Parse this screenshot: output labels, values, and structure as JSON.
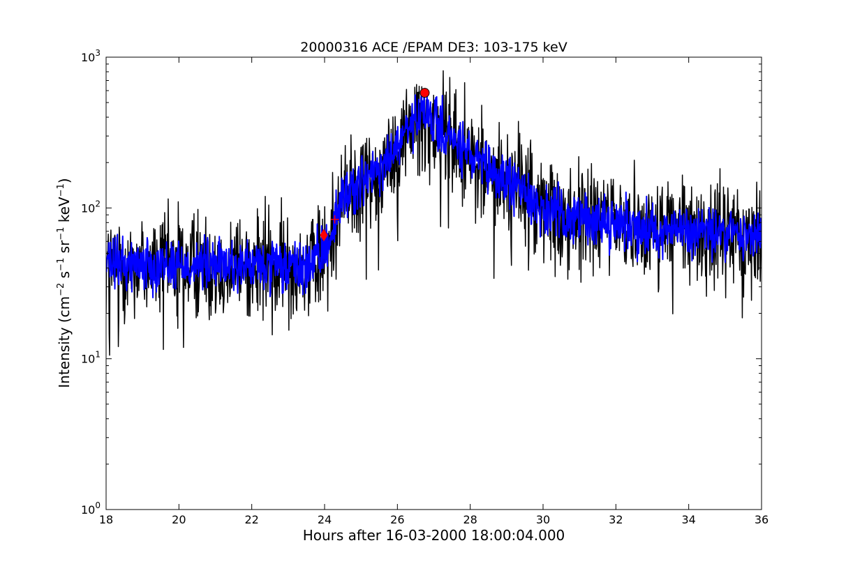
{
  "chart_data": {
    "type": "line",
    "title": "20000316 ACE /EPAM DE3: 103-175 keV",
    "xlabel": "Hours after 16-03-2000 18:00:04.000",
    "ylabel": {
      "prefix": "Intensity (cm",
      "sup1": "−2",
      "mid1": " s",
      "sup2": "−1",
      "mid2": " sr",
      "sup3": "−1",
      "mid3": " keV",
      "sup4": "−1",
      "suffix": ")"
    },
    "xlim": [
      18,
      36
    ],
    "ylim": [
      1,
      1000
    ],
    "yscale": "log",
    "xticks": [
      18,
      20,
      22,
      24,
      26,
      28,
      30,
      32,
      34,
      36
    ],
    "xtick_labels": [
      "18",
      "20",
      "22",
      "24",
      "26",
      "28",
      "30",
      "32",
      "34",
      "36"
    ],
    "yticks": [
      {
        "value": 1,
        "base": "10",
        "exp": "0"
      },
      {
        "value": 10,
        "base": "10",
        "exp": "1"
      },
      {
        "value": 100,
        "base": "10",
        "exp": "2"
      },
      {
        "value": 1000,
        "base": "10",
        "exp": "3"
      }
    ],
    "grid": false,
    "series": [
      {
        "role": "raw",
        "color": "#000000",
        "profile_x": [
          18,
          19,
          20,
          21,
          22,
          23,
          23.5,
          23.9,
          24.2,
          24.5,
          25,
          25.5,
          26,
          26.5,
          26.8,
          27.2,
          27.6,
          28,
          28.5,
          29,
          29.5,
          30,
          31,
          32,
          33,
          34,
          35,
          36
        ],
        "profile_y": [
          42,
          43,
          42,
          42,
          41,
          40,
          40,
          48,
          70,
          120,
          150,
          170,
          260,
          380,
          420,
          330,
          270,
          220,
          170,
          150,
          130,
          95,
          85,
          80,
          72,
          70,
          68,
          65
        ],
        "noise_amplitude": 0.35,
        "spike_low_min": 8.2,
        "n_points": 1500
      },
      {
        "role": "smoothed",
        "color": "#0000ff",
        "profile_x": [
          18,
          19,
          20,
          21,
          22,
          23,
          23.5,
          23.9,
          24.2,
          24.5,
          25,
          25.5,
          26,
          26.5,
          26.8,
          27.2,
          27.6,
          28,
          28.5,
          29,
          29.5,
          30,
          31,
          32,
          33,
          34,
          35,
          36
        ],
        "profile_y": [
          42,
          43,
          42,
          42,
          41,
          40,
          40,
          48,
          70,
          120,
          150,
          170,
          260,
          380,
          420,
          330,
          270,
          220,
          170,
          150,
          130,
          95,
          85,
          80,
          72,
          70,
          68,
          65
        ],
        "noise_amplitude": 0.17,
        "n_points": 1500
      }
    ],
    "markers": [
      {
        "shape": "diamond",
        "x": 23.98,
        "y": 66,
        "color": "#ff0000"
      },
      {
        "shape": "plus",
        "x": 24.28,
        "y": 84,
        "color": "#ff0000"
      },
      {
        "shape": "circle",
        "x": 26.75,
        "y": 580,
        "color": "#ff0000"
      }
    ]
  }
}
